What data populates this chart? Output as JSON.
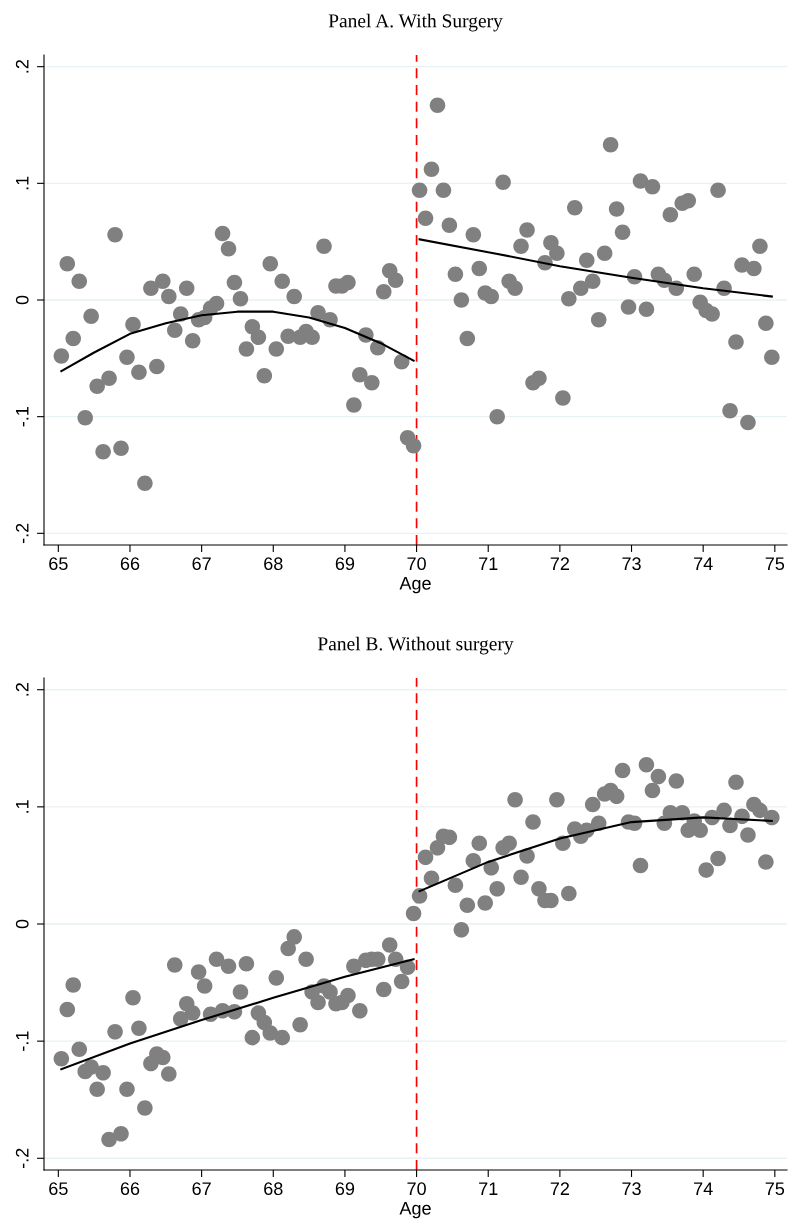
{
  "chart_data": [
    {
      "type": "scatter",
      "title": "Panel A. With Surgery",
      "xlabel": "Age",
      "xlim": [
        64.8,
        75.17
      ],
      "ylim": [
        -0.21,
        0.21
      ],
      "xticks": [
        65,
        66,
        67,
        68,
        69,
        70,
        71,
        72,
        73,
        74,
        75
      ],
      "yticks": [
        {
          "value": -0.2,
          "label": "-.2"
        },
        {
          "value": -0.1,
          "label": "-.1"
        },
        {
          "value": 0,
          "label": "0"
        },
        {
          "value": 0.1,
          "label": ".1"
        },
        {
          "value": 0.2,
          "label": ".2"
        }
      ],
      "grid": "y",
      "ref_lines": [
        {
          "axis": "x",
          "value": 70,
          "color": "#ff0000",
          "line_style": "dashed"
        }
      ],
      "x": [
        65.042,
        65.125,
        65.208,
        65.292,
        65.375,
        65.458,
        65.542,
        65.625,
        65.708,
        65.792,
        65.875,
        65.958,
        66.042,
        66.125,
        66.208,
        66.292,
        66.375,
        66.458,
        66.542,
        66.625,
        66.708,
        66.792,
        66.875,
        66.958,
        67.042,
        67.125,
        67.208,
        67.292,
        67.375,
        67.458,
        67.542,
        67.625,
        67.708,
        67.792,
        67.875,
        67.958,
        68.042,
        68.125,
        68.208,
        68.292,
        68.375,
        68.458,
        68.542,
        68.625,
        68.708,
        68.792,
        68.875,
        68.958,
        69.042,
        69.125,
        69.208,
        69.292,
        69.375,
        69.458,
        69.542,
        69.625,
        69.708,
        69.792,
        69.875,
        69.958,
        70.042,
        70.125,
        70.208,
        70.292,
        70.375,
        70.458,
        70.542,
        70.625,
        70.708,
        70.792,
        70.875,
        70.958,
        71.042,
        71.125,
        71.208,
        71.292,
        71.375,
        71.458,
        71.542,
        71.625,
        71.708,
        71.792,
        71.875,
        71.958,
        72.042,
        72.125,
        72.208,
        72.292,
        72.375,
        72.458,
        72.542,
        72.625,
        72.708,
        72.792,
        72.875,
        72.958,
        73.042,
        73.125,
        73.208,
        73.292,
        73.375,
        73.458,
        73.542,
        73.625,
        73.708,
        73.792,
        73.875,
        73.958,
        74.042,
        74.125,
        74.208,
        74.292,
        74.375,
        74.458,
        74.542,
        74.625,
        74.708,
        74.792,
        74.875,
        74.958
      ],
      "series": [
        {
          "marker": "circle",
          "color": "#808080",
          "values": [
            -0.048,
            0.031,
            -0.033,
            0.016,
            -0.101,
            -0.014,
            -0.074,
            -0.13,
            -0.067,
            0.056,
            -0.127,
            -0.049,
            -0.021,
            -0.062,
            -0.157,
            0.01,
            -0.057,
            0.016,
            0.003,
            -0.026,
            -0.012,
            0.01,
            -0.035,
            -0.017,
            -0.015,
            -0.007,
            -0.003,
            0.057,
            0.044,
            0.015,
            0.001,
            -0.042,
            -0.023,
            -0.032,
            -0.065,
            0.031,
            -0.042,
            0.016,
            -0.031,
            0.003,
            -0.032,
            -0.027,
            -0.032,
            -0.011,
            0.046,
            -0.017,
            0.012,
            0.012,
            0.015,
            -0.09,
            -0.064,
            -0.03,
            -0.071,
            -0.041,
            0.007,
            0.025,
            0.017,
            -0.053,
            -0.118,
            -0.125,
            0.094,
            0.07,
            0.112,
            0.167,
            0.094,
            0.064,
            0.022,
            0.0,
            -0.033,
            0.056,
            0.027,
            0.006,
            0.003,
            -0.1,
            0.101,
            0.016,
            0.01,
            0.046,
            0.06,
            -0.071,
            -0.067,
            0.032,
            0.049,
            0.04,
            -0.084,
            0.001,
            0.079,
            0.01,
            0.034,
            0.016,
            -0.017,
            0.04,
            0.133,
            0.078,
            0.058,
            -0.006,
            0.02,
            0.102,
            -0.008,
            0.097,
            0.022,
            0.017,
            0.073,
            0.01,
            0.083,
            0.085,
            0.022,
            -0.002,
            -0.009,
            -0.012,
            0.094,
            0.01,
            -0.095,
            -0.036,
            0.03,
            -0.105,
            0.027,
            0.046,
            -0.02,
            -0.049
          ]
        },
        {
          "type": "line",
          "color": "#000000",
          "x": [
            65.042,
            65.5,
            66,
            66.5,
            67,
            67.5,
            68,
            68.5,
            69,
            69.5,
            69.958
          ],
          "values": [
            -0.061,
            -0.045,
            -0.029,
            -0.02,
            -0.013,
            -0.01,
            -0.01,
            -0.015,
            -0.024,
            -0.037,
            -0.052
          ]
        },
        {
          "type": "line",
          "color": "#000000",
          "x": [
            70.042,
            71,
            72,
            73,
            74,
            74.958
          ],
          "values": [
            0.052,
            0.041,
            0.029,
            0.019,
            0.01,
            0.003
          ]
        }
      ]
    },
    {
      "type": "scatter",
      "title": "Panel B. Without surgery",
      "xlabel": "Age",
      "xlim": [
        64.8,
        75.17
      ],
      "ylim": [
        -0.21,
        0.21
      ],
      "xticks": [
        65,
        66,
        67,
        68,
        69,
        70,
        71,
        72,
        73,
        74,
        75
      ],
      "yticks": [
        {
          "value": -0.2,
          "label": "-.2"
        },
        {
          "value": -0.1,
          "label": "-.1"
        },
        {
          "value": 0,
          "label": "0"
        },
        {
          "value": 0.1,
          "label": ".1"
        },
        {
          "value": 0.2,
          "label": ".2"
        }
      ],
      "grid": "y",
      "ref_lines": [
        {
          "axis": "x",
          "value": 70,
          "color": "#ff0000",
          "line_style": "dashed"
        }
      ],
      "x": [
        65.042,
        65.125,
        65.208,
        65.292,
        65.375,
        65.458,
        65.542,
        65.625,
        65.708,
        65.792,
        65.875,
        65.958,
        66.042,
        66.125,
        66.208,
        66.292,
        66.375,
        66.458,
        66.542,
        66.625,
        66.708,
        66.792,
        66.875,
        66.958,
        67.042,
        67.125,
        67.208,
        67.292,
        67.375,
        67.458,
        67.542,
        67.625,
        67.708,
        67.792,
        67.875,
        67.958,
        68.042,
        68.125,
        68.208,
        68.292,
        68.375,
        68.458,
        68.542,
        68.625,
        68.708,
        68.792,
        68.875,
        68.958,
        69.042,
        69.125,
        69.208,
        69.292,
        69.375,
        69.458,
        69.542,
        69.625,
        69.708,
        69.792,
        69.875,
        69.958,
        70.042,
        70.125,
        70.208,
        70.292,
        70.375,
        70.458,
        70.542,
        70.625,
        70.708,
        70.792,
        70.875,
        70.958,
        71.042,
        71.125,
        71.208,
        71.292,
        71.375,
        71.458,
        71.542,
        71.625,
        71.708,
        71.792,
        71.875,
        71.958,
        72.042,
        72.125,
        72.208,
        72.292,
        72.375,
        72.458,
        72.542,
        72.625,
        72.708,
        72.792,
        72.875,
        72.958,
        73.042,
        73.125,
        73.208,
        73.292,
        73.375,
        73.458,
        73.542,
        73.625,
        73.708,
        73.792,
        73.875,
        73.958,
        74.042,
        74.125,
        74.208,
        74.292,
        74.375,
        74.458,
        74.542,
        74.625,
        74.708,
        74.792,
        74.875,
        74.958
      ],
      "series": [
        {
          "marker": "circle",
          "color": "#808080",
          "values": [
            -0.115,
            -0.073,
            -0.052,
            -0.107,
            -0.126,
            -0.122,
            -0.141,
            -0.127,
            -0.184,
            -0.092,
            -0.179,
            -0.141,
            -0.063,
            -0.089,
            -0.157,
            -0.119,
            -0.111,
            -0.114,
            -0.128,
            -0.035,
            -0.081,
            -0.068,
            -0.076,
            -0.041,
            -0.053,
            -0.077,
            -0.03,
            -0.074,
            -0.036,
            -0.075,
            -0.058,
            -0.034,
            -0.097,
            -0.076,
            -0.084,
            -0.093,
            -0.046,
            -0.097,
            -0.021,
            -0.011,
            -0.086,
            -0.03,
            -0.058,
            -0.067,
            -0.053,
            -0.058,
            -0.068,
            -0.067,
            -0.061,
            -0.036,
            -0.074,
            -0.031,
            -0.03,
            -0.03,
            -0.056,
            -0.018,
            -0.03,
            -0.049,
            -0.037,
            0.009,
            0.024,
            0.057,
            0.039,
            0.065,
            0.075,
            0.074,
            0.033,
            -0.005,
            0.016,
            0.054,
            0.069,
            0.018,
            0.048,
            0.03,
            0.065,
            0.069,
            0.106,
            0.04,
            0.058,
            0.087,
            0.03,
            0.02,
            0.02,
            0.106,
            0.069,
            0.026,
            0.081,
            0.075,
            0.08,
            0.102,
            0.086,
            0.111,
            0.114,
            0.109,
            0.131,
            0.087,
            0.086,
            0.05,
            0.136,
            0.114,
            0.126,
            0.086,
            0.095,
            0.122,
            0.095,
            0.08,
            0.088,
            0.08,
            0.046,
            0.091,
            0.056,
            0.097,
            0.084,
            0.121,
            0.092,
            0.076,
            0.102,
            0.097,
            0.053,
            0.091
          ]
        },
        {
          "type": "line",
          "color": "#000000",
          "x": [
            65.042,
            66,
            67,
            68,
            69,
            69.958
          ],
          "values": [
            -0.124,
            -0.102,
            -0.082,
            -0.063,
            -0.045,
            -0.03
          ]
        },
        {
          "type": "line",
          "color": "#000000",
          "x": [
            70.042,
            71,
            72,
            73,
            74,
            74.958
          ],
          "values": [
            0.028,
            0.053,
            0.073,
            0.087,
            0.091,
            0.088
          ]
        }
      ]
    }
  ]
}
